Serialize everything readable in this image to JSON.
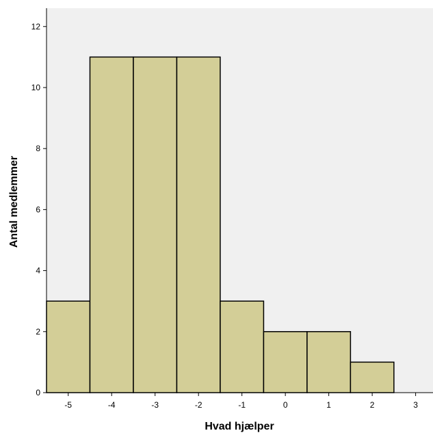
{
  "chart_data": {
    "type": "bar",
    "subtype": "histogram",
    "title": "",
    "xlabel": "Hvad hjælper",
    "ylabel": "Antal medlemmer",
    "bins": [
      {
        "from": -5.5,
        "to": -4.5,
        "value": 3
      },
      {
        "from": -4.5,
        "to": -3.5,
        "value": 11
      },
      {
        "from": -3.5,
        "to": -2.5,
        "value": 11
      },
      {
        "from": -2.5,
        "to": -1.5,
        "value": 11
      },
      {
        "from": -1.5,
        "to": -0.5,
        "value": 3
      },
      {
        "from": -0.5,
        "to": 0.5,
        "value": 2
      },
      {
        "from": 0.5,
        "to": 1.5,
        "value": 2
      },
      {
        "from": 1.5,
        "to": 2.5,
        "value": 1
      }
    ],
    "xlim": [
      -5.5,
      3.4
    ],
    "ylim": [
      0,
      12.6
    ],
    "xticks": [
      "-5",
      "-4",
      "-3",
      "-2",
      "-1",
      "0",
      "1",
      "2",
      "3"
    ],
    "yticks": [
      "0",
      "2",
      "4",
      "6",
      "8",
      "10",
      "12"
    ],
    "grid": false,
    "legend": false,
    "colors": {
      "plot_background": "#f0f0f0",
      "bar_fill": "#d3ce97",
      "bar_stroke": "#000000",
      "axis": "#000000"
    }
  }
}
